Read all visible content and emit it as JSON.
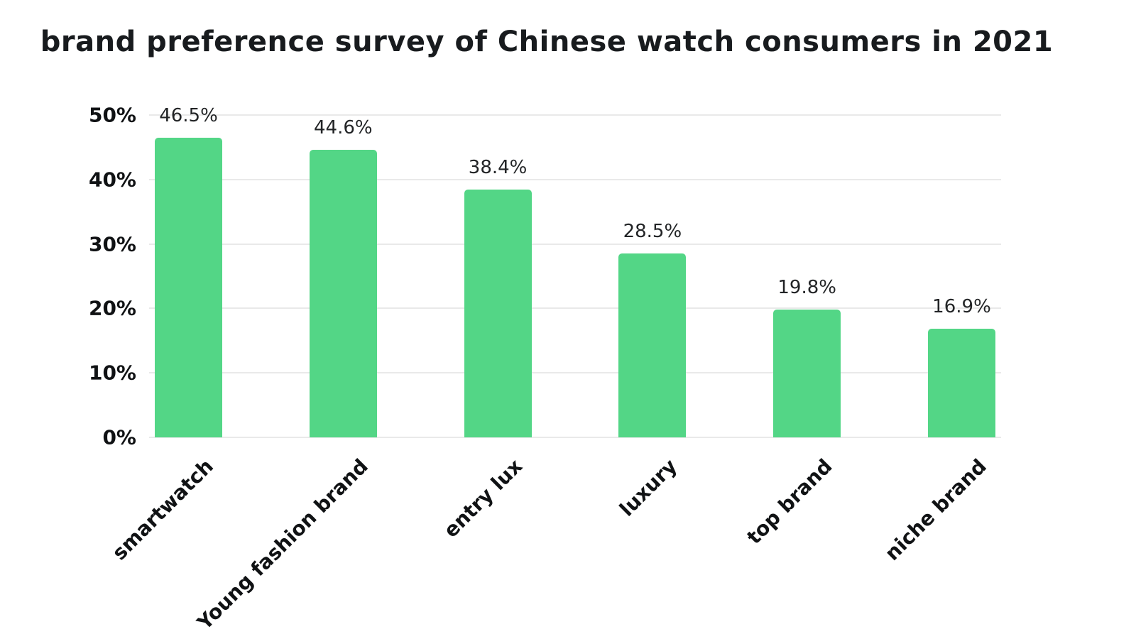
{
  "chart_data": {
    "type": "bar",
    "title": "brand preference survey of Chinese watch consumers in 2021",
    "categories": [
      "smartwatch",
      "Young fashion brand",
      "entry lux",
      "luxury",
      "top brand",
      "niche brand"
    ],
    "values": [
      46.5,
      44.6,
      38.4,
      28.5,
      19.8,
      16.9
    ],
    "value_labels": [
      "46.5%",
      "44.6%",
      "38.4%",
      "28.5%",
      "19.8%",
      "16.9%"
    ],
    "xlabel": "",
    "ylabel": "",
    "ylim": [
      0,
      50
    ],
    "yticks": [
      0,
      10,
      20,
      30,
      40,
      50
    ],
    "ytick_labels": [
      "0%",
      "10%",
      "20%",
      "30%",
      "40%",
      "50%"
    ],
    "grid": "horizontal",
    "legend": "none",
    "bar_color": "#53d686"
  },
  "colors": {
    "bar": "#53d686",
    "grid": "#e9e9e9",
    "text": "#101214",
    "value_text": "#222426",
    "background": "#ffffff"
  }
}
